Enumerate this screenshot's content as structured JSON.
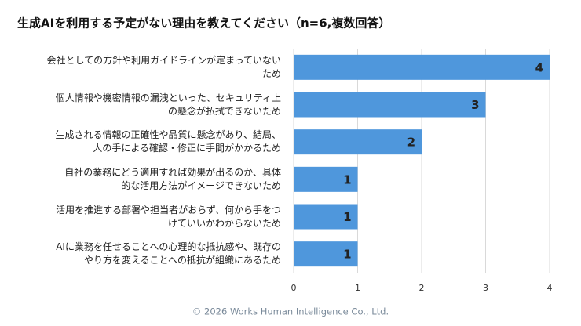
{
  "chart_data": {
    "type": "bar",
    "orientation": "horizontal",
    "title": "生成AIを利用する予定がない理由を教えてください（n=6,複数回答）",
    "categories": [
      "会社としての方針や利用ガイドラインが定まっていない\nため",
      "個人情報や機密情報の漏洩といった、セキュリティ上\nの懸念が払拭できないため",
      "生成される情報の正確性や品質に懸念があり、結局、\n人の手による確認・修正に手間がかかるため",
      "自社の業務にどう適用すれば効果が出るのか、具体\n的な活用方法がイメージできないため",
      "活用を推進する部署や担当者がおらず、何から手をつ\nけていいかわからないため",
      "AIに業務を任せることへの心理的な抵抗感や、既存の\nやり方を変えることへの抵抗が組織にあるため"
    ],
    "values": [
      4,
      3,
      2,
      1,
      1,
      1
    ],
    "color": "#4f97dc",
    "xlim": [
      0,
      4
    ],
    "xticks": [
      0,
      1,
      2,
      3,
      4
    ],
    "grid": true
  },
  "footer": "© 2026 Works Human Intelligence Co., Ltd."
}
